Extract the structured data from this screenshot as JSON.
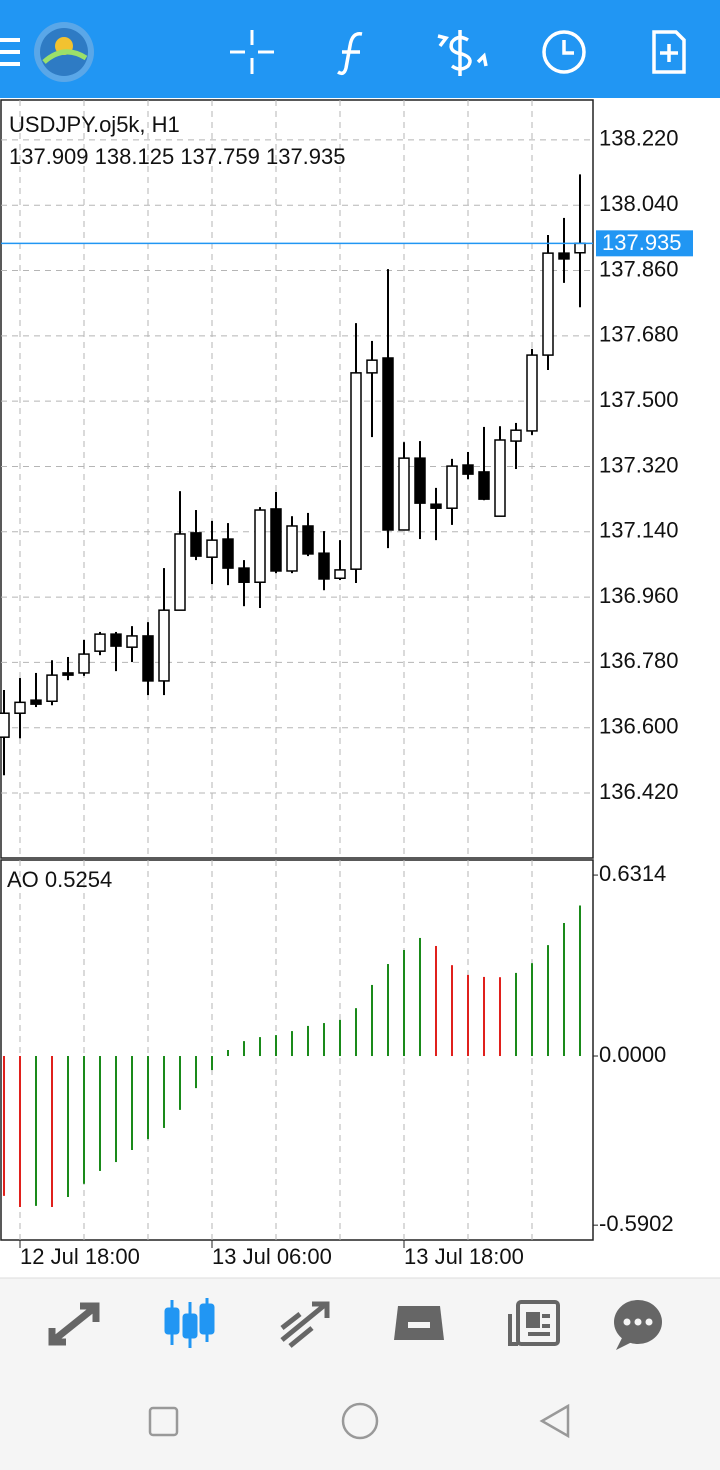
{
  "chart_data": [
    {
      "type": "candlestick",
      "title": "USDJPY.oj5k, H1",
      "open": [
        136.574,
        136.64,
        136.676,
        136.673,
        136.751,
        136.751,
        136.811,
        136.858,
        136.822,
        136.853,
        136.729,
        136.924,
        137.137,
        137.07,
        137.12,
        137.04,
        137.001,
        137.203,
        137.032,
        137.156,
        137.081,
        137.012,
        137.037,
        137.578,
        137.619,
        137.145,
        137.343,
        137.216,
        137.205,
        137.324,
        137.305,
        137.183,
        137.39,
        137.418,
        137.627,
        137.908,
        137.909
      ],
      "high": [
        136.704,
        136.737,
        136.751,
        136.786,
        136.795,
        136.842,
        136.864,
        136.864,
        136.88,
        136.891,
        137.04,
        137.252,
        137.2,
        137.17,
        137.164,
        137.062,
        137.208,
        137.25,
        137.183,
        137.192,
        137.142,
        137.117,
        137.715,
        137.666,
        137.864,
        137.387,
        137.39,
        137.261,
        137.341,
        137.36,
        137.429,
        137.431,
        137.44,
        137.644,
        137.958,
        138.005,
        138.125
      ],
      "low": [
        136.469,
        136.571,
        136.657,
        136.662,
        136.731,
        136.743,
        136.8,
        136.756,
        136.781,
        136.69,
        136.69,
        136.924,
        137.062,
        136.996,
        136.993,
        136.935,
        136.93,
        137.026,
        137.026,
        137.073,
        136.979,
        137.007,
        136.999,
        137.401,
        137.095,
        137.145,
        137.12,
        137.117,
        137.159,
        137.285,
        137.227,
        137.183,
        137.313,
        137.407,
        137.586,
        137.826,
        137.759
      ],
      "close": [
        136.64,
        136.67,
        136.665,
        136.745,
        136.745,
        136.803,
        136.858,
        136.825,
        136.853,
        136.729,
        136.924,
        137.134,
        137.073,
        137.117,
        137.04,
        137.001,
        137.2,
        137.032,
        137.156,
        137.079,
        137.01,
        137.035,
        137.578,
        137.613,
        137.145,
        137.343,
        137.219,
        137.205,
        137.321,
        137.299,
        137.23,
        137.393,
        137.42,
        137.627,
        137.908,
        137.892,
        137.935
      ],
      "ylim": [
        136.241,
        138.33
      ],
      "yticks": [
        {
          "value": 138.22,
          "label": "138.220"
        },
        {
          "value": 138.04,
          "label": "138.040"
        },
        {
          "value": 137.86,
          "label": "137.860"
        },
        {
          "value": 137.68,
          "label": "137.680"
        },
        {
          "value": 137.5,
          "label": "137.500"
        },
        {
          "value": 137.32,
          "label": "137.320"
        },
        {
          "value": 137.14,
          "label": "137.140"
        },
        {
          "value": 136.96,
          "label": "136.960"
        },
        {
          "value": 136.78,
          "label": "136.780"
        },
        {
          "value": 136.6,
          "label": "136.600"
        },
        {
          "value": 136.42,
          "label": "136.420"
        }
      ],
      "grid": true,
      "up_color": "#ffffff",
      "down_color": "#000000",
      "price_line_color": "#2196f3"
    },
    {
      "type": "bar",
      "title": "AO",
      "categories": [
        null,
        "12 Jul 18:00",
        null,
        null,
        null,
        null,
        null,
        null,
        null,
        null,
        null,
        null,
        null,
        "13 Jul 06:00",
        null,
        null,
        null,
        null,
        null,
        null,
        null,
        null,
        null,
        null,
        null,
        "13 Jul 18:00",
        null,
        null,
        null,
        null,
        null,
        null,
        null,
        null,
        null,
        null,
        null
      ],
      "values": [
        -0.488,
        -0.527,
        -0.523,
        -0.527,
        -0.492,
        -0.446,
        -0.401,
        -0.37,
        -0.328,
        -0.29,
        -0.251,
        -0.188,
        -0.112,
        -0.049,
        0.021,
        0.052,
        0.066,
        0.073,
        0.087,
        0.105,
        0.115,
        0.126,
        0.167,
        0.248,
        0.321,
        0.37,
        0.412,
        0.384,
        0.317,
        0.283,
        0.276,
        0.275,
        0.29,
        0.324,
        0.387,
        0.464,
        0.5254
      ],
      "ylim": [
        -0.642,
        0.684
      ],
      "yticks": [
        0.6314,
        {
          "value": 0,
          "label": "0.0000"
        },
        -0.5902
      ],
      "grid": true,
      "up_color": "#1a8a1a",
      "down_color": "#e0201c"
    }
  ]
}
